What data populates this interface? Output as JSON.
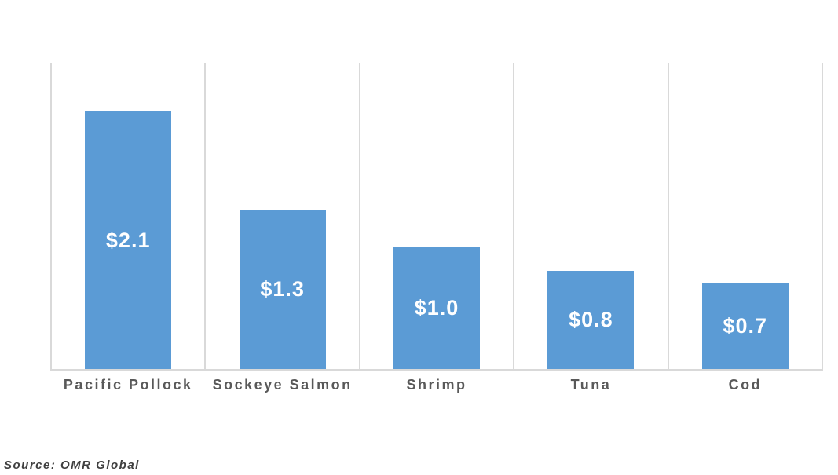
{
  "chart_data": {
    "type": "bar",
    "categories": [
      "Pacific Pollock",
      "Sockeye Salmon",
      "Shrimp",
      "Tuna",
      "Cod"
    ],
    "values": [
      2.1,
      1.3,
      1.0,
      0.8,
      0.7
    ],
    "data_labels": [
      "$2.1",
      "$1.3",
      "$1.0",
      "$0.8",
      "$0.7"
    ],
    "title": "",
    "xlabel": "",
    "ylabel": "",
    "ylim": [
      0,
      2.5
    ],
    "grid": "vertical gridlines at category boundaries, no horizontal gridlines, no y-axis labels",
    "legend": "none",
    "data_label_position": "inside-center",
    "bar_color": "#5B9BD5",
    "data_label_color": "#FFFFFF"
  },
  "source_note": "Source: OMR Global",
  "colors": {
    "bar": "#5B9BD5",
    "gridline": "#D9D9D9",
    "axis_line": "#D9D9D9",
    "category_label": "#595959",
    "source_text": "#404040",
    "background": "#FFFFFF"
  }
}
